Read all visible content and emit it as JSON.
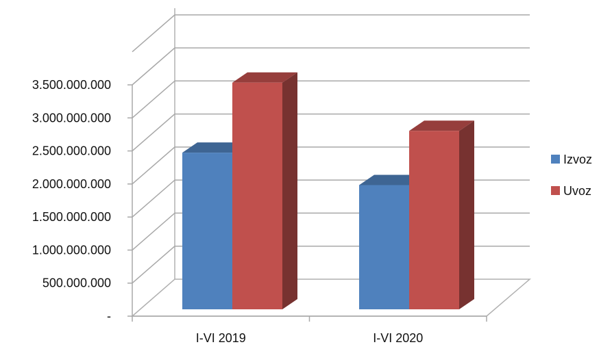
{
  "chart_data": {
    "type": "bar",
    "title": "",
    "xlabel": "",
    "ylabel": "",
    "categories": [
      "I-VI 2019",
      "I-VI 2020"
    ],
    "series": [
      {
        "name": "Izvoz",
        "values": [
          2370000000,
          1880000000
        ],
        "color": "#4F81BD"
      },
      {
        "name": "Uvoz",
        "values": [
          3430000000,
          2700000000
        ],
        "color": "#C0504D"
      }
    ],
    "ylim": [
      0,
      3500000000
    ],
    "y_ticks": [
      {
        "value": 0,
        "label": "-"
      },
      {
        "value": 500000000,
        "label": "500.000.000"
      },
      {
        "value": 1000000000,
        "label": "1.000.000.000"
      },
      {
        "value": 1500000000,
        "label": "1.500.000.000"
      },
      {
        "value": 2000000000,
        "label": "2.000.000.000"
      },
      {
        "value": 2500000000,
        "label": "2.500.000.000"
      },
      {
        "value": 3000000000,
        "label": "3.000.000.000"
      },
      {
        "value": 3500000000,
        "label": "3.500.000.000"
      }
    ],
    "grid": true,
    "style": "3d-clustered-column",
    "legend_position": "right"
  }
}
